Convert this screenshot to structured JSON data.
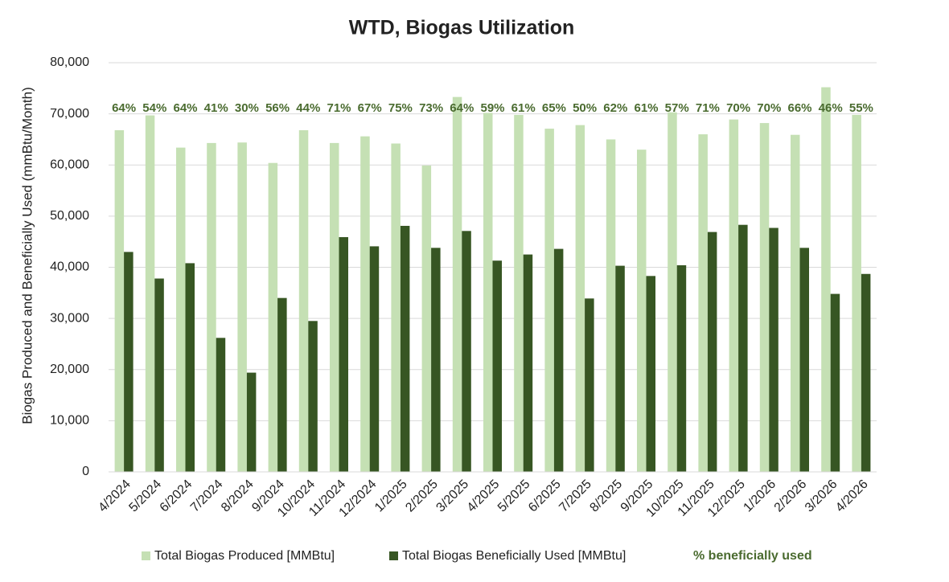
{
  "chart_data": {
    "type": "bar",
    "title": "WTD, Biogas Utilization",
    "y_label": "Biogas Produced and Beneficially Used (mmBtu/Month)",
    "categories": [
      "4/2024",
      "5/2024",
      "6/2024",
      "7/2024",
      "8/2024",
      "9/2024",
      "10/2024",
      "11/2024",
      "12/2024",
      "1/2025",
      "2/2025",
      "3/2025",
      "4/2025",
      "5/2025",
      "6/2025",
      "7/2025",
      "8/2025",
      "9/2025",
      "10/2025",
      "11/2025",
      "12/2025",
      "1/2026",
      "2/2026",
      "3/2026",
      "4/2026"
    ],
    "series": [
      {
        "name": "Total Biogas Produced [MMBtu]",
        "color": "#c5e0b4",
        "values": [
          66800,
          69700,
          63400,
          64300,
          64400,
          60400,
          66800,
          64300,
          65600,
          64200,
          59900,
          73300,
          70200,
          69800,
          67100,
          67800,
          65000,
          63000,
          70300,
          66000,
          68900,
          68200,
          65900,
          75200,
          69800
        ]
      },
      {
        "name": "Total Biogas Beneficially Used [MMBtu]",
        "color": "#375623",
        "values": [
          43000,
          37800,
          40800,
          26200,
          19400,
          34000,
          29500,
          45900,
          44100,
          48100,
          43800,
          47100,
          41300,
          42500,
          43600,
          33900,
          40300,
          38300,
          40400,
          46900,
          48300,
          47700,
          43800,
          34800,
          38700
        ]
      },
      {
        "name": "% beneficially used",
        "color": "#4a6b2f",
        "values": [
          64,
          54,
          64,
          41,
          30,
          56,
          44,
          71,
          67,
          75,
          73,
          64,
          59,
          61,
          65,
          50,
          62,
          61,
          57,
          71,
          70,
          70,
          66,
          46,
          55
        ],
        "value_labels": [
          "64%",
          "54%",
          "64%",
          "41%",
          "30%",
          "56%",
          "44%",
          "71%",
          "67%",
          "75%",
          "73%",
          "64%",
          "59%",
          "61%",
          "65%",
          "50%",
          "62%",
          "61%",
          "57%",
          "71%",
          "70%",
          "70%",
          "66%",
          "46%",
          "55%"
        ]
      }
    ],
    "ylim": [
      0,
      80000
    ],
    "yticks": [
      0,
      {
        "value": 10000,
        "label": "10,000"
      },
      {
        "value": 20000,
        "label": "20,000"
      },
      {
        "value": 30000,
        "label": "30,000"
      },
      {
        "value": 40000,
        "label": "40,000"
      },
      {
        "value": 50000,
        "label": "50,000"
      },
      {
        "value": 60000,
        "label": "60,000"
      },
      {
        "value": 70000,
        "label": "70,000"
      },
      {
        "value": 80000,
        "label": "80,000"
      }
    ],
    "grid": true,
    "legend": "bottom"
  }
}
